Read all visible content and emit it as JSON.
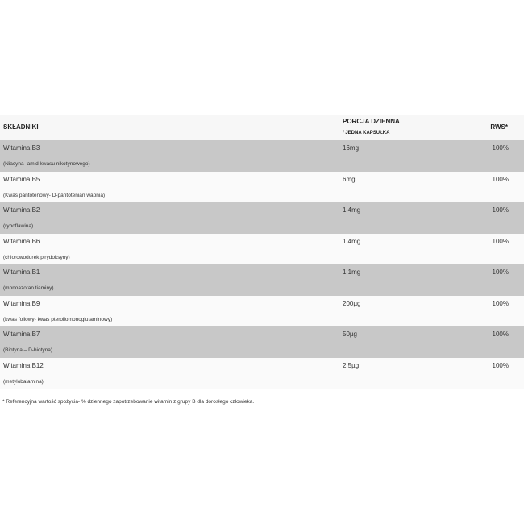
{
  "header": {
    "ingredients": "SKŁADNIKI",
    "dose": "PORCJA DZIENNA",
    "dose_sub": "/ JEDNA KAPSUŁKA",
    "rws": "RWS*"
  },
  "rows": [
    {
      "name": "Witamina B3",
      "desc": "(Niacyna- amid kwasu nikotynowego)",
      "dose": "16mg",
      "rws": "100%"
    },
    {
      "name": "Witamina B5",
      "desc": "(Kwas pantotenowy- D-pantotenian wapnia)",
      "dose": "6mg",
      "rws": "100%"
    },
    {
      "name": "Witamina B2",
      "desc": "(ryboflawina)",
      "dose": "1,4mg",
      "rws": "100%"
    },
    {
      "name": "Witamina B6",
      "desc": "(chlorowodorek pirydoksyny)",
      "dose": "1,4mg",
      "rws": "100%"
    },
    {
      "name": "Witamina B1",
      "desc": "(monoazotan tiaminy)",
      "dose": "1,1mg",
      "rws": "100%"
    },
    {
      "name": "Witamina B9",
      "desc": "(kwas foliowy-  kwas pteroilomonoglutaminowy)",
      "dose": "200µg",
      "rws": "100%"
    },
    {
      "name": "Witamina B7",
      "desc": "(Biotyna – D-biotyna)",
      "dose": "50µg",
      "rws": "100%"
    },
    {
      "name": "Witamina B12",
      "desc": "(metylobalamina)",
      "dose": "2,5µg",
      "rws": "100%"
    }
  ],
  "footnote": "* Referencyjna wartość spożycia- % dziennego zapotrzebowanie witamin z grupy B dla dorosłego człowieka."
}
